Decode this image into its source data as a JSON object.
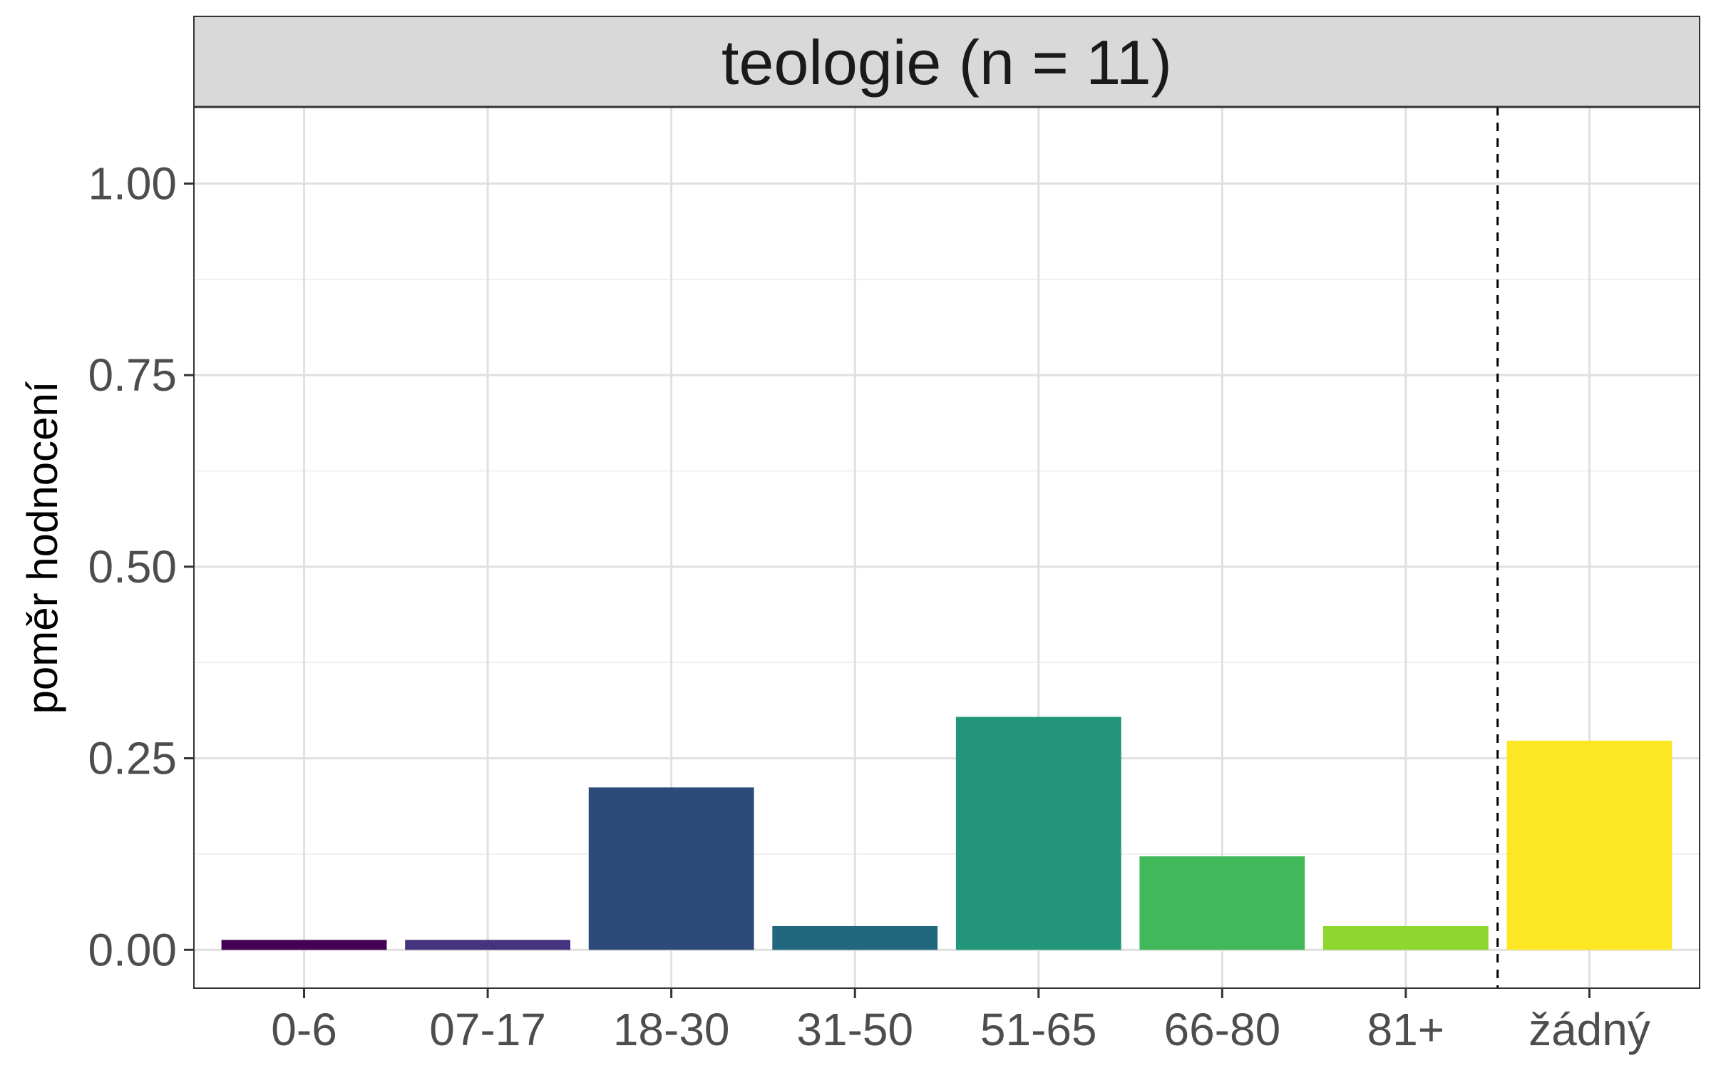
{
  "chart_data": {
    "type": "bar",
    "facet_title": "teologie (n = 11)",
    "ylabel": "poměr hodnocení",
    "xlabel": "",
    "ylim": [
      -0.05,
      1.1
    ],
    "yticks": [
      0.0,
      0.25,
      0.5,
      0.75,
      1.0
    ],
    "ytick_labels": [
      "0.00",
      "0.25",
      "0.50",
      "0.75",
      "1.00"
    ],
    "categories": [
      "0-6",
      "07-17",
      "18-30",
      "31-50",
      "51-65",
      "66-80",
      "81+",
      "žádný"
    ],
    "values": [
      0.013,
      0.013,
      0.212,
      0.031,
      0.304,
      0.122,
      0.031,
      0.273
    ],
    "colors": [
      "#440154",
      "#46337E",
      "#2C4A7A",
      "#21677E",
      "#22957A",
      "#41B95A",
      "#8FD62E",
      "#FDE725"
    ],
    "separator_after_category": "81+",
    "grid": true,
    "legend": "none"
  }
}
